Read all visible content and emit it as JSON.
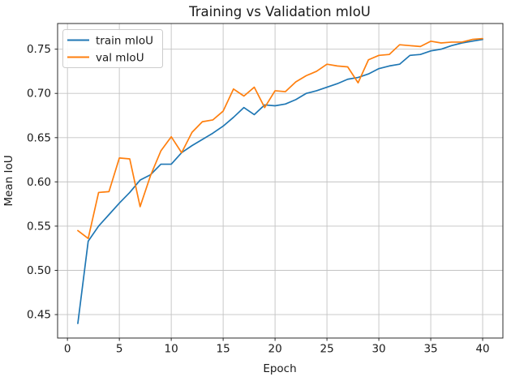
{
  "chart_data": {
    "type": "line",
    "title": "Training vs Validation mIoU",
    "xlabel": "Epoch",
    "ylabel": "Mean IoU",
    "x": [
      1,
      2,
      3,
      4,
      5,
      6,
      7,
      8,
      9,
      10,
      11,
      12,
      13,
      14,
      15,
      16,
      17,
      18,
      19,
      20,
      21,
      22,
      23,
      24,
      25,
      26,
      27,
      28,
      29,
      30,
      31,
      32,
      33,
      34,
      35,
      36,
      37,
      38,
      39,
      40
    ],
    "series": [
      {
        "name": "train mIoU",
        "color": "#1f77b4",
        "values": [
          0.44,
          0.533,
          0.55,
          0.563,
          0.576,
          0.588,
          0.602,
          0.608,
          0.62,
          0.62,
          0.633,
          0.641,
          0.648,
          0.655,
          0.663,
          0.673,
          0.684,
          0.676,
          0.687,
          0.686,
          0.688,
          0.693,
          0.7,
          0.703,
          0.707,
          0.711,
          0.716,
          0.718,
          0.722,
          0.728,
          0.731,
          0.733,
          0.743,
          0.744,
          0.748,
          0.75,
          0.754,
          0.757,
          0.759,
          0.761
        ]
      },
      {
        "name": "val mIoU",
        "color": "#ff7f0e",
        "values": [
          0.545,
          0.536,
          0.588,
          0.589,
          0.627,
          0.626,
          0.572,
          0.607,
          0.635,
          0.651,
          0.633,
          0.656,
          0.668,
          0.67,
          0.68,
          0.705,
          0.697,
          0.707,
          0.684,
          0.703,
          0.702,
          0.713,
          0.72,
          0.725,
          0.733,
          0.731,
          0.73,
          0.712,
          0.738,
          0.743,
          0.744,
          0.755,
          0.754,
          0.753,
          0.759,
          0.757,
          0.758,
          0.758,
          0.761,
          0.762
        ]
      }
    ],
    "xlim": [
      -0.95,
      41.95
    ],
    "ylim": [
      0.4235,
      0.779
    ],
    "x_ticks": [
      0,
      5,
      10,
      15,
      20,
      25,
      30,
      35,
      40
    ],
    "y_ticks": [
      0.45,
      0.5,
      0.55,
      0.6,
      0.65,
      0.7,
      0.75
    ],
    "grid": true,
    "legend_position": "upper left"
  },
  "colors": {
    "grid": "#c3c3c3",
    "spine": "#2b2b2b",
    "tick": "#2b2b2b",
    "text": "#1a1a1a",
    "legend_border": "#cccccc",
    "background": "#ffffff",
    "train": "#1f77b4",
    "val": "#ff7f0e"
  },
  "legend": {
    "entries": [
      {
        "label": "train mIoU"
      },
      {
        "label": "val mIoU"
      }
    ]
  }
}
